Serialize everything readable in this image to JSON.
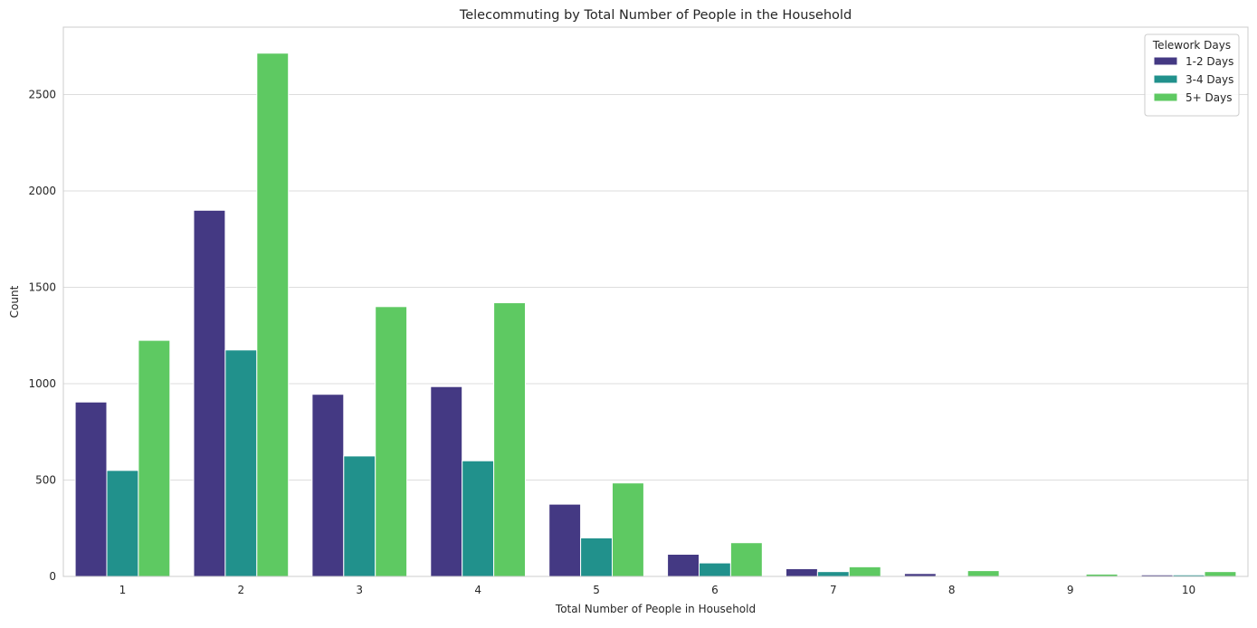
{
  "chart_data": {
    "type": "bar",
    "title": "Telecommuting by Total Number of People in the Household",
    "xlabel": "Total Number of People in Household",
    "ylabel": "Count",
    "categories": [
      "1",
      "2",
      "3",
      "4",
      "5",
      "6",
      "7",
      "8",
      "9",
      "10"
    ],
    "series": [
      {
        "name": "1-2 Days",
        "color": "#443983",
        "values": [
          905,
          1900,
          945,
          985,
          375,
          115,
          40,
          15,
          3,
          8
        ]
      },
      {
        "name": "3-4 Days",
        "color": "#21918c",
        "values": [
          550,
          1175,
          625,
          600,
          200,
          70,
          25,
          3,
          2,
          8
        ]
      },
      {
        "name": "5+ Days",
        "color": "#5ec962",
        "values": [
          1225,
          2715,
          1400,
          1420,
          485,
          175,
          50,
          30,
          12,
          25
        ]
      }
    ],
    "yticks": [
      0,
      500,
      1000,
      1500,
      2000,
      2500
    ],
    "ylim": [
      0,
      2850
    ],
    "grid": "y",
    "legend": {
      "title": "Telework Days",
      "placement": "top-right"
    }
  }
}
